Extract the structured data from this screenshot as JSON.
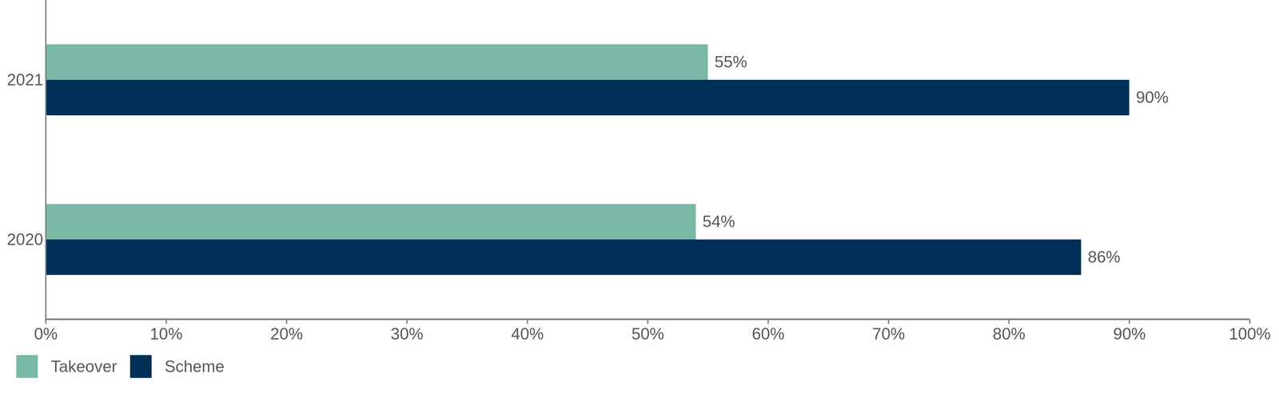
{
  "chart_data": {
    "type": "bar",
    "orientation": "horizontal",
    "categories": [
      "2021",
      "2020"
    ],
    "series": [
      {
        "name": "Takeover",
        "color": "#7ab8a8",
        "values": [
          55,
          54
        ],
        "value_labels": [
          "55%",
          "54%"
        ]
      },
      {
        "name": "Scheme",
        "color": "#003057",
        "values": [
          90,
          86
        ],
        "value_labels": [
          "90%",
          "86%"
        ]
      }
    ],
    "xlim": [
      0,
      100
    ],
    "xticks": [
      {
        "value": 0,
        "label": "0%"
      },
      {
        "value": 10,
        "label": "10%"
      },
      {
        "value": 20,
        "label": "20%"
      },
      {
        "value": 30,
        "label": "30%"
      },
      {
        "value": 40,
        "label": "40%"
      },
      {
        "value": 50,
        "label": "50%"
      },
      {
        "value": 60,
        "label": "60%"
      },
      {
        "value": 70,
        "label": "70%"
      },
      {
        "value": 80,
        "label": "80%"
      },
      {
        "value": 90,
        "label": "90%"
      },
      {
        "value": 100,
        "label": "100%"
      }
    ],
    "grid": false,
    "data_labels": true,
    "legend": "lower left"
  }
}
